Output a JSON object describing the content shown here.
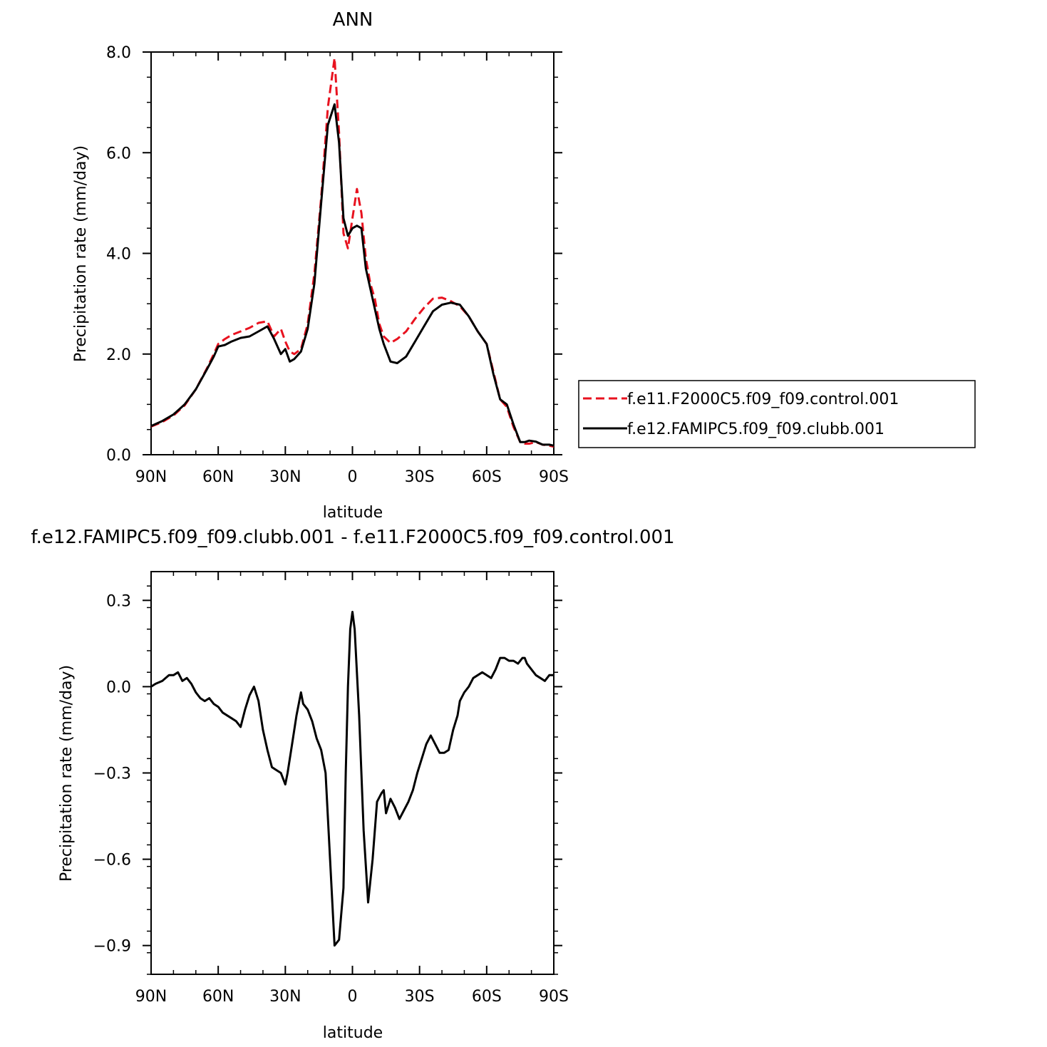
{
  "chart_data": [
    {
      "type": "line",
      "title": "ANN",
      "xlabel": "latitude",
      "ylabel": "Precipitation rate (mm/day)",
      "xlim": [
        90,
        -90
      ],
      "ylim": [
        0,
        8
      ],
      "x_ticks": [
        {
          "value": 90,
          "label": "90N"
        },
        {
          "value": 60,
          "label": "60N"
        },
        {
          "value": 30,
          "label": "30N"
        },
        {
          "value": 0,
          "label": "0"
        },
        {
          "value": -30,
          "label": "30S"
        },
        {
          "value": -60,
          "label": "60S"
        },
        {
          "value": -90,
          "label": "90S"
        }
      ],
      "y_ticks": [
        {
          "value": 0,
          "label": "0.0"
        },
        {
          "value": 2,
          "label": "2.0"
        },
        {
          "value": 4,
          "label": "4.0"
        },
        {
          "value": 6,
          "label": "6.0"
        },
        {
          "value": 8,
          "label": "8.0"
        }
      ],
      "grid": false,
      "legend_position": "right",
      "series": [
        {
          "name": "f.e11.F2000C5.f09_f09.control.001",
          "color": "#e8121f",
          "dash": "dashed",
          "x": [
            90,
            85,
            80,
            75,
            70,
            65,
            62,
            60,
            57,
            54,
            50,
            46,
            42,
            38,
            35,
            32,
            30,
            28,
            26,
            23,
            20,
            17,
            14,
            11,
            8,
            6,
            4,
            2,
            0,
            -2,
            -4,
            -6,
            -8,
            -10,
            -12,
            -14,
            -17,
            -20,
            -24,
            -28,
            -32,
            -36,
            -40,
            -44,
            -48,
            -52,
            -56,
            -60,
            -63,
            -66,
            -69,
            -72,
            -75,
            -77,
            -79,
            -82,
            -85,
            -88,
            -90
          ],
          "y": [
            0.56,
            0.65,
            0.78,
            0.98,
            1.3,
            1.72,
            2.0,
            2.2,
            2.3,
            2.38,
            2.45,
            2.52,
            2.62,
            2.65,
            2.35,
            2.5,
            2.25,
            2.05,
            2.0,
            2.1,
            2.6,
            3.6,
            5.1,
            6.9,
            7.88,
            6.4,
            4.4,
            4.1,
            4.7,
            5.28,
            4.8,
            3.9,
            3.4,
            3.1,
            2.6,
            2.35,
            2.22,
            2.3,
            2.45,
            2.7,
            2.92,
            3.1,
            3.12,
            3.05,
            2.95,
            2.75,
            2.45,
            2.2,
            1.65,
            1.1,
            0.95,
            0.55,
            0.25,
            0.22,
            0.22,
            0.25,
            0.2,
            0.18,
            0.16
          ]
        },
        {
          "name": "f.e12.FAMIPC5.f09_f09.clubb.001",
          "color": "#000000",
          "dash": "solid",
          "x": [
            90,
            85,
            80,
            75,
            70,
            65,
            62,
            60,
            57,
            54,
            50,
            46,
            42,
            38,
            35,
            32,
            30,
            28,
            26,
            23,
            20,
            17,
            14,
            11,
            8,
            6,
            4,
            2,
            0,
            -2,
            -4,
            -6,
            -8,
            -10,
            -12,
            -14,
            -17,
            -20,
            -24,
            -28,
            -32,
            -36,
            -40,
            -44,
            -48,
            -52,
            -56,
            -60,
            -63,
            -66,
            -69,
            -72,
            -75,
            -77,
            -79,
            -82,
            -85,
            -88,
            -90
          ],
          "y": [
            0.57,
            0.67,
            0.8,
            1.0,
            1.3,
            1.7,
            1.95,
            2.15,
            2.18,
            2.25,
            2.32,
            2.35,
            2.45,
            2.55,
            2.3,
            2.0,
            2.1,
            1.85,
            1.9,
            2.05,
            2.5,
            3.4,
            5.0,
            6.55,
            6.96,
            6.2,
            4.7,
            4.35,
            4.5,
            4.55,
            4.5,
            3.7,
            3.3,
            2.9,
            2.5,
            2.2,
            1.85,
            1.82,
            1.95,
            2.25,
            2.55,
            2.85,
            2.98,
            3.02,
            2.98,
            2.75,
            2.45,
            2.2,
            1.6,
            1.1,
            1.0,
            0.6,
            0.25,
            0.25,
            0.28,
            0.26,
            0.2,
            0.2,
            0.18
          ]
        }
      ]
    },
    {
      "type": "line",
      "title": "f.e12.FAMIPC5.f09_f09.clubb.001 - f.e11.F2000C5.f09_f09.control.001",
      "xlabel": "latitude",
      "ylabel": "Precipitation rate (mm/day)",
      "xlim": [
        90,
        -90
      ],
      "ylim": [
        -1.0,
        0.4
      ],
      "x_ticks": [
        {
          "value": 90,
          "label": "90N"
        },
        {
          "value": 60,
          "label": "60N"
        },
        {
          "value": 30,
          "label": "30N"
        },
        {
          "value": 0,
          "label": "0"
        },
        {
          "value": -30,
          "label": "30S"
        },
        {
          "value": -60,
          "label": "60S"
        },
        {
          "value": -90,
          "label": "90S"
        }
      ],
      "y_ticks": [
        {
          "value": -0.9,
          "label": "−0.9"
        },
        {
          "value": -0.6,
          "label": "−0.6"
        },
        {
          "value": -0.3,
          "label": "−0.3"
        },
        {
          "value": 0.0,
          "label": "0.0"
        },
        {
          "value": 0.3,
          "label": "0.3"
        }
      ],
      "grid": false,
      "series": [
        {
          "color": "#000000",
          "dash": "solid",
          "x": [
            90,
            88,
            85,
            82,
            80,
            78,
            76,
            74,
            72,
            70,
            68,
            66,
            64,
            62,
            60,
            58,
            56,
            54,
            52,
            50,
            48,
            46,
            44,
            42,
            40,
            38,
            36,
            34,
            32,
            30,
            29,
            27,
            25,
            23,
            22,
            20,
            18,
            16,
            14,
            12,
            10,
            8,
            6,
            4,
            3,
            2,
            1,
            0,
            -1,
            -3,
            -5,
            -7,
            -9,
            -11,
            -13,
            -14,
            -15,
            -17,
            -19,
            -21,
            -23,
            -25,
            -27,
            -29,
            -31,
            -33,
            -35,
            -37,
            -39,
            -41,
            -43,
            -45,
            -47,
            -48,
            -50,
            -52,
            -54,
            -56,
            -58,
            -60,
            -62,
            -64,
            -66,
            -68,
            -70,
            -72,
            -74,
            -76,
            -77,
            -78,
            -80,
            -82,
            -84,
            -86,
            -88,
            -90
          ],
          "y": [
            0.0,
            0.01,
            0.02,
            0.04,
            0.04,
            0.05,
            0.02,
            0.03,
            0.01,
            -0.02,
            -0.04,
            -0.05,
            -0.04,
            -0.06,
            -0.07,
            -0.09,
            -0.1,
            -0.11,
            -0.12,
            -0.14,
            -0.08,
            -0.03,
            0.0,
            -0.05,
            -0.15,
            -0.22,
            -0.28,
            -0.29,
            -0.3,
            -0.34,
            -0.3,
            -0.2,
            -0.1,
            -0.02,
            -0.06,
            -0.08,
            -0.12,
            -0.18,
            -0.22,
            -0.3,
            -0.6,
            -0.9,
            -0.88,
            -0.7,
            -0.3,
            0.0,
            0.2,
            0.26,
            0.2,
            -0.1,
            -0.5,
            -0.75,
            -0.6,
            -0.4,
            -0.37,
            -0.36,
            -0.44,
            -0.39,
            -0.42,
            -0.46,
            -0.43,
            -0.4,
            -0.36,
            -0.3,
            -0.25,
            -0.2,
            -0.17,
            -0.2,
            -0.23,
            -0.23,
            -0.22,
            -0.15,
            -0.1,
            -0.05,
            -0.02,
            0.0,
            0.03,
            0.04,
            0.05,
            0.04,
            0.03,
            0.06,
            0.1,
            0.1,
            0.09,
            0.09,
            0.08,
            0.1,
            0.1,
            0.08,
            0.06,
            0.04,
            0.03,
            0.02,
            0.04,
            0.04
          ]
        }
      ]
    }
  ]
}
